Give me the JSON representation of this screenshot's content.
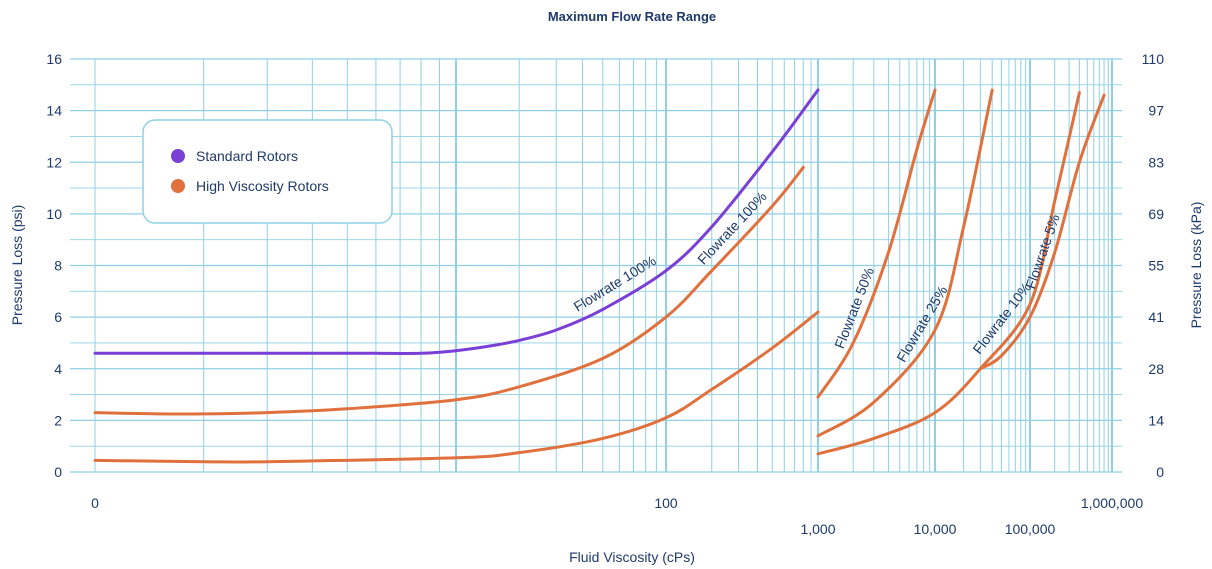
{
  "chart_data": {
    "type": "line",
    "title": "Maximum Flow Rate Range",
    "xlabel": "Fluid Viscosity (cPs)",
    "ylabel_left": "Pressure Loss (psi)",
    "ylabel_right": "Pressure Loss (kPa)",
    "x_scale": "log",
    "ylim": [
      0,
      16
    ],
    "grid": true,
    "legend_position": "top-left",
    "yticks_left": [
      "0",
      "2",
      "4",
      "6",
      "8",
      "10",
      "12",
      "14",
      "16"
    ],
    "yticks_right": [
      "0",
      "14",
      "28",
      "41",
      "55",
      "69",
      "83",
      "97",
      "110"
    ],
    "xticks": [
      {
        "value": 1,
        "label": "0"
      },
      {
        "value": 100,
        "label": "100"
      },
      {
        "value": 1000,
        "label": "1,000"
      },
      {
        "value": 10000,
        "label": "10,000"
      },
      {
        "value": 100000,
        "label": "100,000"
      },
      {
        "value": 1000000,
        "label": "1,000,000"
      }
    ],
    "legend": [
      {
        "label": "Standard Rotors",
        "color": "#7a3fd6"
      },
      {
        "label": "High Viscosity Rotors",
        "color": "#e0703c"
      }
    ],
    "series": [
      {
        "group": "Standard Rotors",
        "label": "Flowrate  100%",
        "color": "#7a3fd6",
        "x": [
          1,
          3,
          5,
          6,
          8,
          10,
          15,
          20,
          30,
          50,
          100,
          200,
          500,
          1000
        ],
        "y": [
          4.6,
          4.6,
          4.6,
          4.6,
          4.6,
          4.7,
          4.9,
          5.1,
          5.5,
          6.3,
          7.8,
          9.5,
          12.4,
          14.8
        ]
      },
      {
        "group": "High Viscosity Rotors",
        "label": "Flowrate  100%",
        "color": "#e0703c",
        "x": [
          1,
          1.5,
          2,
          3,
          5,
          10,
          20,
          50,
          100,
          200,
          500,
          800
        ],
        "y": [
          2.3,
          2.25,
          2.25,
          2.3,
          2.45,
          2.8,
          3.3,
          4.4,
          6.0,
          7.8,
          10.3,
          11.8
        ]
      },
      {
        "group": "High Viscosity Rotors",
        "label": "",
        "color": "#e0703c",
        "x": [
          1,
          2,
          3,
          10,
          20,
          50,
          100,
          200,
          500,
          1000
        ],
        "y": [
          0.45,
          0.4,
          0.4,
          0.55,
          0.75,
          1.3,
          2.1,
          3.2,
          4.8,
          6.2
        ]
      },
      {
        "group": "High Viscosity Rotors",
        "label": "Flowrate  50%",
        "color": "#e0703c",
        "x": [
          1000,
          2000,
          4000,
          7000,
          10000
        ],
        "y": [
          2.9,
          5.0,
          8.5,
          12.5,
          14.8
        ]
      },
      {
        "group": "High Viscosity Rotors",
        "label": "Flowrate  25%",
        "color": "#e0703c",
        "x": [
          1000,
          3000,
          10000,
          20000,
          40000
        ],
        "y": [
          1.4,
          2.7,
          5.5,
          9.5,
          14.8
        ]
      },
      {
        "group": "High Viscosity Rotors",
        "label": "Flowrate  10%",
        "color": "#e0703c",
        "x": [
          1000,
          3000,
          10000,
          30000,
          100000,
          200000,
          400000
        ],
        "y": [
          0.7,
          1.3,
          2.3,
          4.0,
          6.5,
          10.5,
          14.7
        ]
      },
      {
        "group": "High Viscosity Rotors",
        "label": "Flowrate  5%",
        "color": "#e0703c",
        "x": [
          30000,
          50000,
          100000,
          200000,
          400000,
          800000
        ],
        "y": [
          4.0,
          4.5,
          6.0,
          8.5,
          12.0,
          14.6
        ]
      }
    ]
  }
}
